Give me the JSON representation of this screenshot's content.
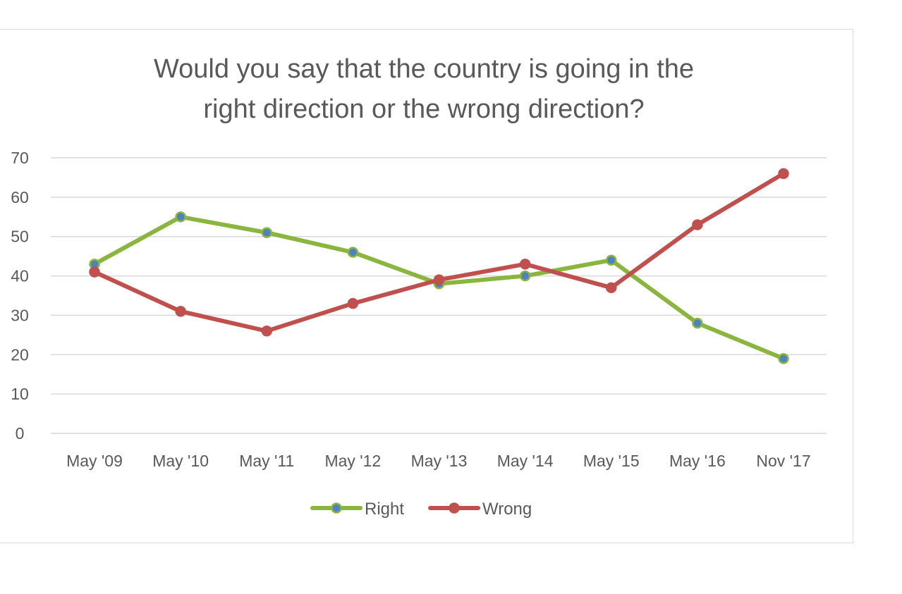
{
  "chart_data": {
    "type": "line",
    "title_lines": [
      "Would you say that the country is going in the",
      "right direction or the wrong direction?"
    ],
    "categories": [
      "May '09",
      "May '10",
      "May '11",
      "May '12",
      "May '13",
      "May '14",
      "May '15",
      "May '16",
      "Nov '17"
    ],
    "series": [
      {
        "name": "Right",
        "values": [
          43,
          55,
          51,
          46,
          38,
          40,
          44,
          28,
          19
        ],
        "line_color": "#8ab53f",
        "marker_color": "#4f81bd"
      },
      {
        "name": "Wrong",
        "values": [
          41,
          31,
          26,
          33,
          39,
          43,
          37,
          53,
          66
        ],
        "line_color": "#c0504d",
        "marker_color": "#c0504d"
      }
    ],
    "ylim": [
      0,
      70
    ],
    "yticks": [
      "0",
      "10",
      "20",
      "30",
      "40",
      "50",
      "60",
      "70"
    ],
    "grid": true,
    "legend_position": "bottom"
  }
}
